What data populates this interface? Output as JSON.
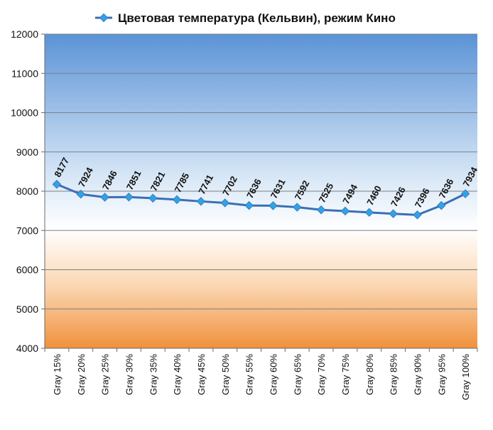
{
  "chart_data": {
    "type": "line",
    "title": "Цветовая температура (Кельвин), режим Кино",
    "xlabel": "",
    "ylabel": "",
    "ylim": [
      4000,
      12000
    ],
    "ytick_step": 1000,
    "yticks": [
      "4000",
      "5000",
      "6000",
      "7000",
      "8000",
      "9000",
      "10000",
      "11000",
      "12000"
    ],
    "grid": true,
    "legend_position": "top",
    "categories": [
      "Gray 15%",
      "Gray 20%",
      "Gray 25%",
      "Gray 30%",
      "Gray 35%",
      "Gray 40%",
      "Gray 45%",
      "Gray 50%",
      "Gray 55%",
      "Gray 60%",
      "Gray 65%",
      "Gray 70%",
      "Gray 75%",
      "Gray 80%",
      "Gray 85%",
      "Gray 90%",
      "Gray 95%",
      "Gray 100%"
    ],
    "series": [
      {
        "name": "Цветовая температура (Кельвин), режим Кино",
        "values": [
          8177,
          7924,
          7846,
          7851,
          7821,
          7785,
          7741,
          7702,
          7636,
          7631,
          7592,
          7525,
          7494,
          7460,
          7426,
          7396,
          7636,
          7934
        ],
        "color": "#3b6fb6",
        "marker_color": "#2ea3e6"
      }
    ],
    "background_gradient": {
      "top": "#5b93d6",
      "mid_light": "#d6e6f6",
      "center": "#ffffff",
      "warm_light": "#fbd7b3",
      "bottom": "#f0913c"
    }
  }
}
